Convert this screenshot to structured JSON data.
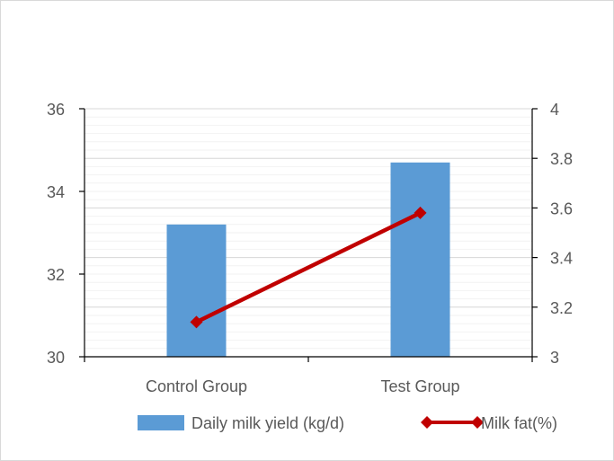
{
  "chart_data": {
    "type": "bar",
    "categories": [
      "Control Group",
      "Test Group"
    ],
    "series": [
      {
        "name": "Daily milk yield (kg/d)",
        "kind": "bar",
        "axis": "left",
        "color": "#5b9bd5",
        "values": [
          33.2,
          34.7
        ]
      },
      {
        "name": "Milk fat(%)",
        "kind": "line",
        "axis": "right",
        "color": "#c00000",
        "marker": "diamond",
        "values": [
          3.14,
          3.58
        ]
      }
    ],
    "y_left": {
      "ylim": [
        30,
        36
      ],
      "ticks": [
        "30",
        "32",
        "34",
        "36"
      ],
      "tick_values": [
        30,
        32,
        34,
        36
      ]
    },
    "y_right": {
      "ylim": [
        3,
        4
      ],
      "ticks": [
        "3",
        "3.2",
        "3.4",
        "3.6",
        "3.8",
        "4"
      ],
      "tick_values": [
        3,
        3.2,
        3.4,
        3.6,
        3.8,
        4
      ]
    },
    "grid": true,
    "legend_position": "bottom",
    "title": "",
    "xlabel": "",
    "ylabel": ""
  }
}
